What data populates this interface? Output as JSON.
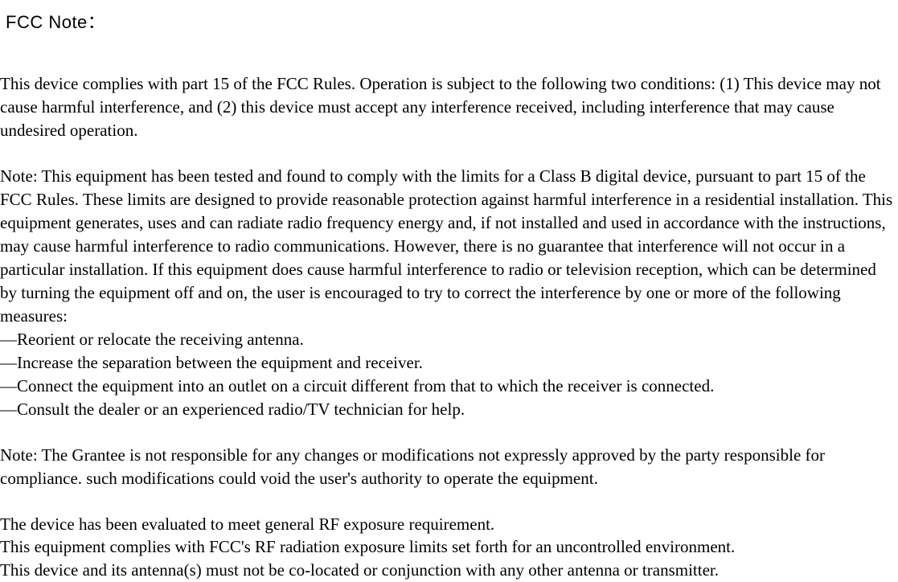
{
  "title": "FCC Note：",
  "paragraphs": {
    "p1": "This device complies with part 15 of the FCC Rules. Operation is subject to the following two conditions: (1) This device may not cause harmful interference, and (2) this device must accept any interference received, including interference that may cause undesired operation.",
    "p2_intro": "Note: This equipment has been tested and found to comply with the limits for a Class B digital device, pursuant to part 15 of the FCC Rules. These limits are designed to provide reasonable protection against harmful interference in a residential installation. This equipment generates, uses and can radiate radio frequency energy and, if not installed and used in accordance with the instructions, may cause harmful interference to radio communications. However, there is no guarantee that interference will not occur in a particular installation. If this equipment does cause harmful interference to radio or television reception, which can be determined by turning the equipment off and on, the user is encouraged to try to correct the interference by one or more of the following measures:",
    "measures": [
      "—Reorient or relocate the receiving antenna.",
      "—Increase the separation between the equipment and receiver.",
      "—Connect the equipment into an outlet on a circuit different from that to which the receiver is connected.",
      "—Consult the dealer or an experienced radio/TV technician for help."
    ],
    "p3": "Note: The Grantee is not responsible for any changes or modifications not expressly approved by the party responsible for compliance. such modifications could void the user's authority to operate the equipment.",
    "p4_line1": "The device has been evaluated to meet general RF exposure requirement.",
    "p4_line2": "This equipment complies with FCC's RF radiation exposure limits set forth for an uncontrolled environment.",
    "p4_line3": "This device and its antenna(s) must not be co-located or conjunction with any other antenna or transmitter."
  },
  "colors": {
    "background": "#ffffff",
    "text": "#000000"
  },
  "typography": {
    "title_font": "Arial",
    "title_size": 22,
    "body_font": "Georgia",
    "body_size": 21,
    "line_height": 1.38
  }
}
